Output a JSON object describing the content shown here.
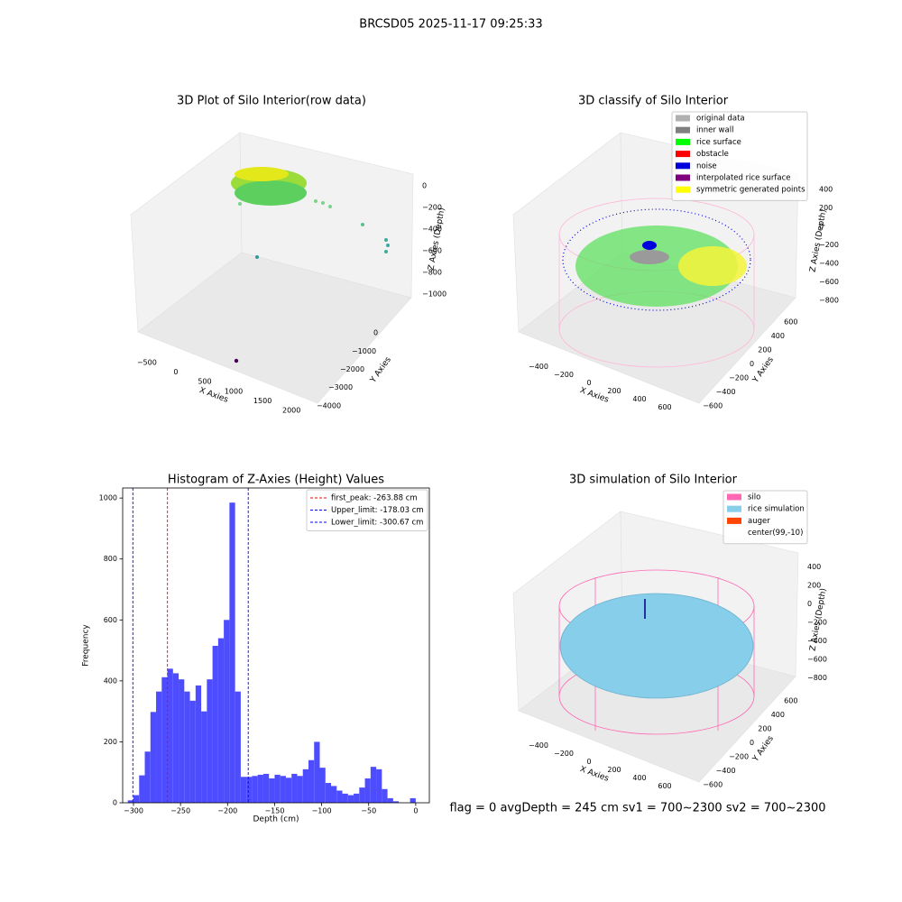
{
  "title": "BRCSD05 2025-11-17 09:25:33",
  "footer": "flag = 0     avgDepth = 245 cm  sv1 = 700~2300  sv2 = 700~2300",
  "chart_data": [
    {
      "type": "scatter3d",
      "title": "3D Plot of Silo Interior(row data)",
      "xlabel": "X Axies",
      "ylabel": "Y Axies",
      "zlabel": "Z Axies (Depth)",
      "xlim": [
        -700,
        2200
      ],
      "ylim": [
        -4500,
        500
      ],
      "zlim": [
        -1150,
        100
      ],
      "xticks": [
        {
          "value": -500,
          "label": "−500"
        },
        0,
        500,
        1000,
        1500,
        2000
      ],
      "yticks": [
        {
          "value": -4000,
          "label": "−4000"
        },
        {
          "value": -3000,
          "label": "−3000"
        },
        {
          "value": -2000,
          "label": "−2000"
        },
        {
          "value": -1000,
          "label": "−1000"
        },
        0
      ],
      "zticks": [
        0,
        {
          "value": -200,
          "label": "−200"
        },
        {
          "value": -400,
          "label": "−400"
        },
        {
          "value": -600,
          "label": "−600"
        },
        {
          "value": -800,
          "label": "−800"
        },
        {
          "value": -1000,
          "label": "−1000"
        }
      ]
    },
    {
      "type": "scatter3d",
      "title": "3D classify of Silo Interior",
      "xlabel": "X Axies",
      "ylabel": "Y Axies",
      "zlabel": "Z Axies (Depth)",
      "xlim": [
        -500,
        700
      ],
      "ylim": [
        -700,
        700
      ],
      "zlim": [
        -900,
        500
      ],
      "xticks": [
        {
          "value": -400,
          "label": "−400"
        },
        {
          "value": -200,
          "label": "−200"
        },
        0,
        200,
        400,
        600
      ],
      "yticks": [
        {
          "value": -600,
          "label": "−600"
        },
        {
          "value": -400,
          "label": "−400"
        },
        {
          "value": -200,
          "label": "−200"
        },
        0,
        200,
        400,
        600
      ],
      "zticks": [
        {
          "value": -800,
          "label": "−800"
        },
        {
          "value": -600,
          "label": "−600"
        },
        {
          "value": -400,
          "label": "−400"
        },
        {
          "value": -200,
          "label": "−200"
        },
        0,
        200,
        400
      ],
      "legend": [
        {
          "name": "original data",
          "color": "#b0b0b0"
        },
        {
          "name": "inner wall",
          "color": "#808080"
        },
        {
          "name": "rice surface",
          "color": "#00ff00"
        },
        {
          "name": "obstacle",
          "color": "#ff0000"
        },
        {
          "name": "noise",
          "color": "#0000dd"
        },
        {
          "name": "interpolated rice surface",
          "color": "#800080"
        },
        {
          "name": "symmetric generated points",
          "color": "#ffff00"
        }
      ]
    },
    {
      "type": "histogram",
      "title": "Histogram of Z-Axies (Height) Values",
      "xlabel": "Depth (cm)",
      "ylabel": "Frequency",
      "color": "#4d4dff",
      "bins": [
        -306,
        -300,
        -294,
        -288,
        -282,
        -276,
        -270,
        -264,
        -258,
        -252,
        -246,
        -240,
        -234,
        -228,
        -222,
        -216,
        -210,
        -204,
        -198,
        -192,
        -186,
        -180,
        -174,
        -168,
        -162,
        -156,
        -150,
        -144,
        -138,
        -132,
        -126,
        -120,
        -114,
        -108,
        -102,
        -96,
        -90,
        -84,
        -78,
        -72,
        -66,
        -60,
        -54,
        -48,
        -42,
        -36,
        -30,
        -24,
        -18,
        -12,
        -6,
        0
      ],
      "values": [
        8,
        25,
        90,
        168,
        298,
        365,
        412,
        440,
        425,
        405,
        365,
        335,
        385,
        300,
        405,
        515,
        540,
        600,
        985,
        365,
        85,
        85,
        88,
        92,
        95,
        80,
        92,
        88,
        82,
        95,
        88,
        110,
        140,
        200,
        115,
        65,
        55,
        40,
        30,
        25,
        30,
        50,
        80,
        118,
        110,
        45,
        15,
        5,
        0,
        0,
        15
      ],
      "xlim": [
        -311.5,
        14.5
      ],
      "ylim": [
        0,
        1033
      ],
      "xticks": [
        {
          "value": -300,
          "label": "−300"
        },
        {
          "value": -250,
          "label": "−250"
        },
        {
          "value": -200,
          "label": "−200"
        },
        {
          "value": -150,
          "label": "−150"
        },
        {
          "value": -100,
          "label": "−100"
        },
        {
          "value": -50,
          "label": "−50"
        },
        0
      ],
      "yticks": [
        0,
        200,
        400,
        600,
        800,
        1000
      ],
      "lines": [
        {
          "name": "first_peak: -263.88 cm",
          "value": -263.88,
          "color": "#ff0000"
        },
        {
          "name": "Upper_limit: -178.03 cm",
          "value": -178.03,
          "color": "#0000ff"
        },
        {
          "name": "Lower_limit: -300.67 cm",
          "value": -300.67,
          "color": "#0000ff"
        }
      ],
      "legend_position": "upper right"
    },
    {
      "type": "surface3d",
      "title": "3D simulation of Silo Interior",
      "xlabel": "X Axies",
      "ylabel": "Y Axies",
      "zlabel": "Z Axies (Depth)",
      "xlim": [
        -500,
        700
      ],
      "ylim": [
        -700,
        700
      ],
      "zlim": [
        -900,
        500
      ],
      "xticks": [
        {
          "value": -400,
          "label": "−400"
        },
        {
          "value": -200,
          "label": "−200"
        },
        0,
        200,
        400,
        600
      ],
      "yticks": [
        {
          "value": -600,
          "label": "−600"
        },
        {
          "value": -400,
          "label": "−400"
        },
        {
          "value": -200,
          "label": "−200"
        },
        0,
        200,
        400,
        600
      ],
      "zticks": [
        {
          "value": -800,
          "label": "−800"
        },
        {
          "value": -600,
          "label": "−600"
        },
        {
          "value": -400,
          "label": "−400"
        },
        {
          "value": -200,
          "label": "−200"
        },
        0,
        200,
        400
      ],
      "legend": [
        {
          "name": "silo",
          "color": "#ff69b4"
        },
        {
          "name": "rice simulation",
          "color": "#87ceeb"
        },
        {
          "name": "auger",
          "color": "#ff4500"
        },
        {
          "name": "center(99,-10)",
          "color": "#ffffff"
        }
      ]
    }
  ]
}
